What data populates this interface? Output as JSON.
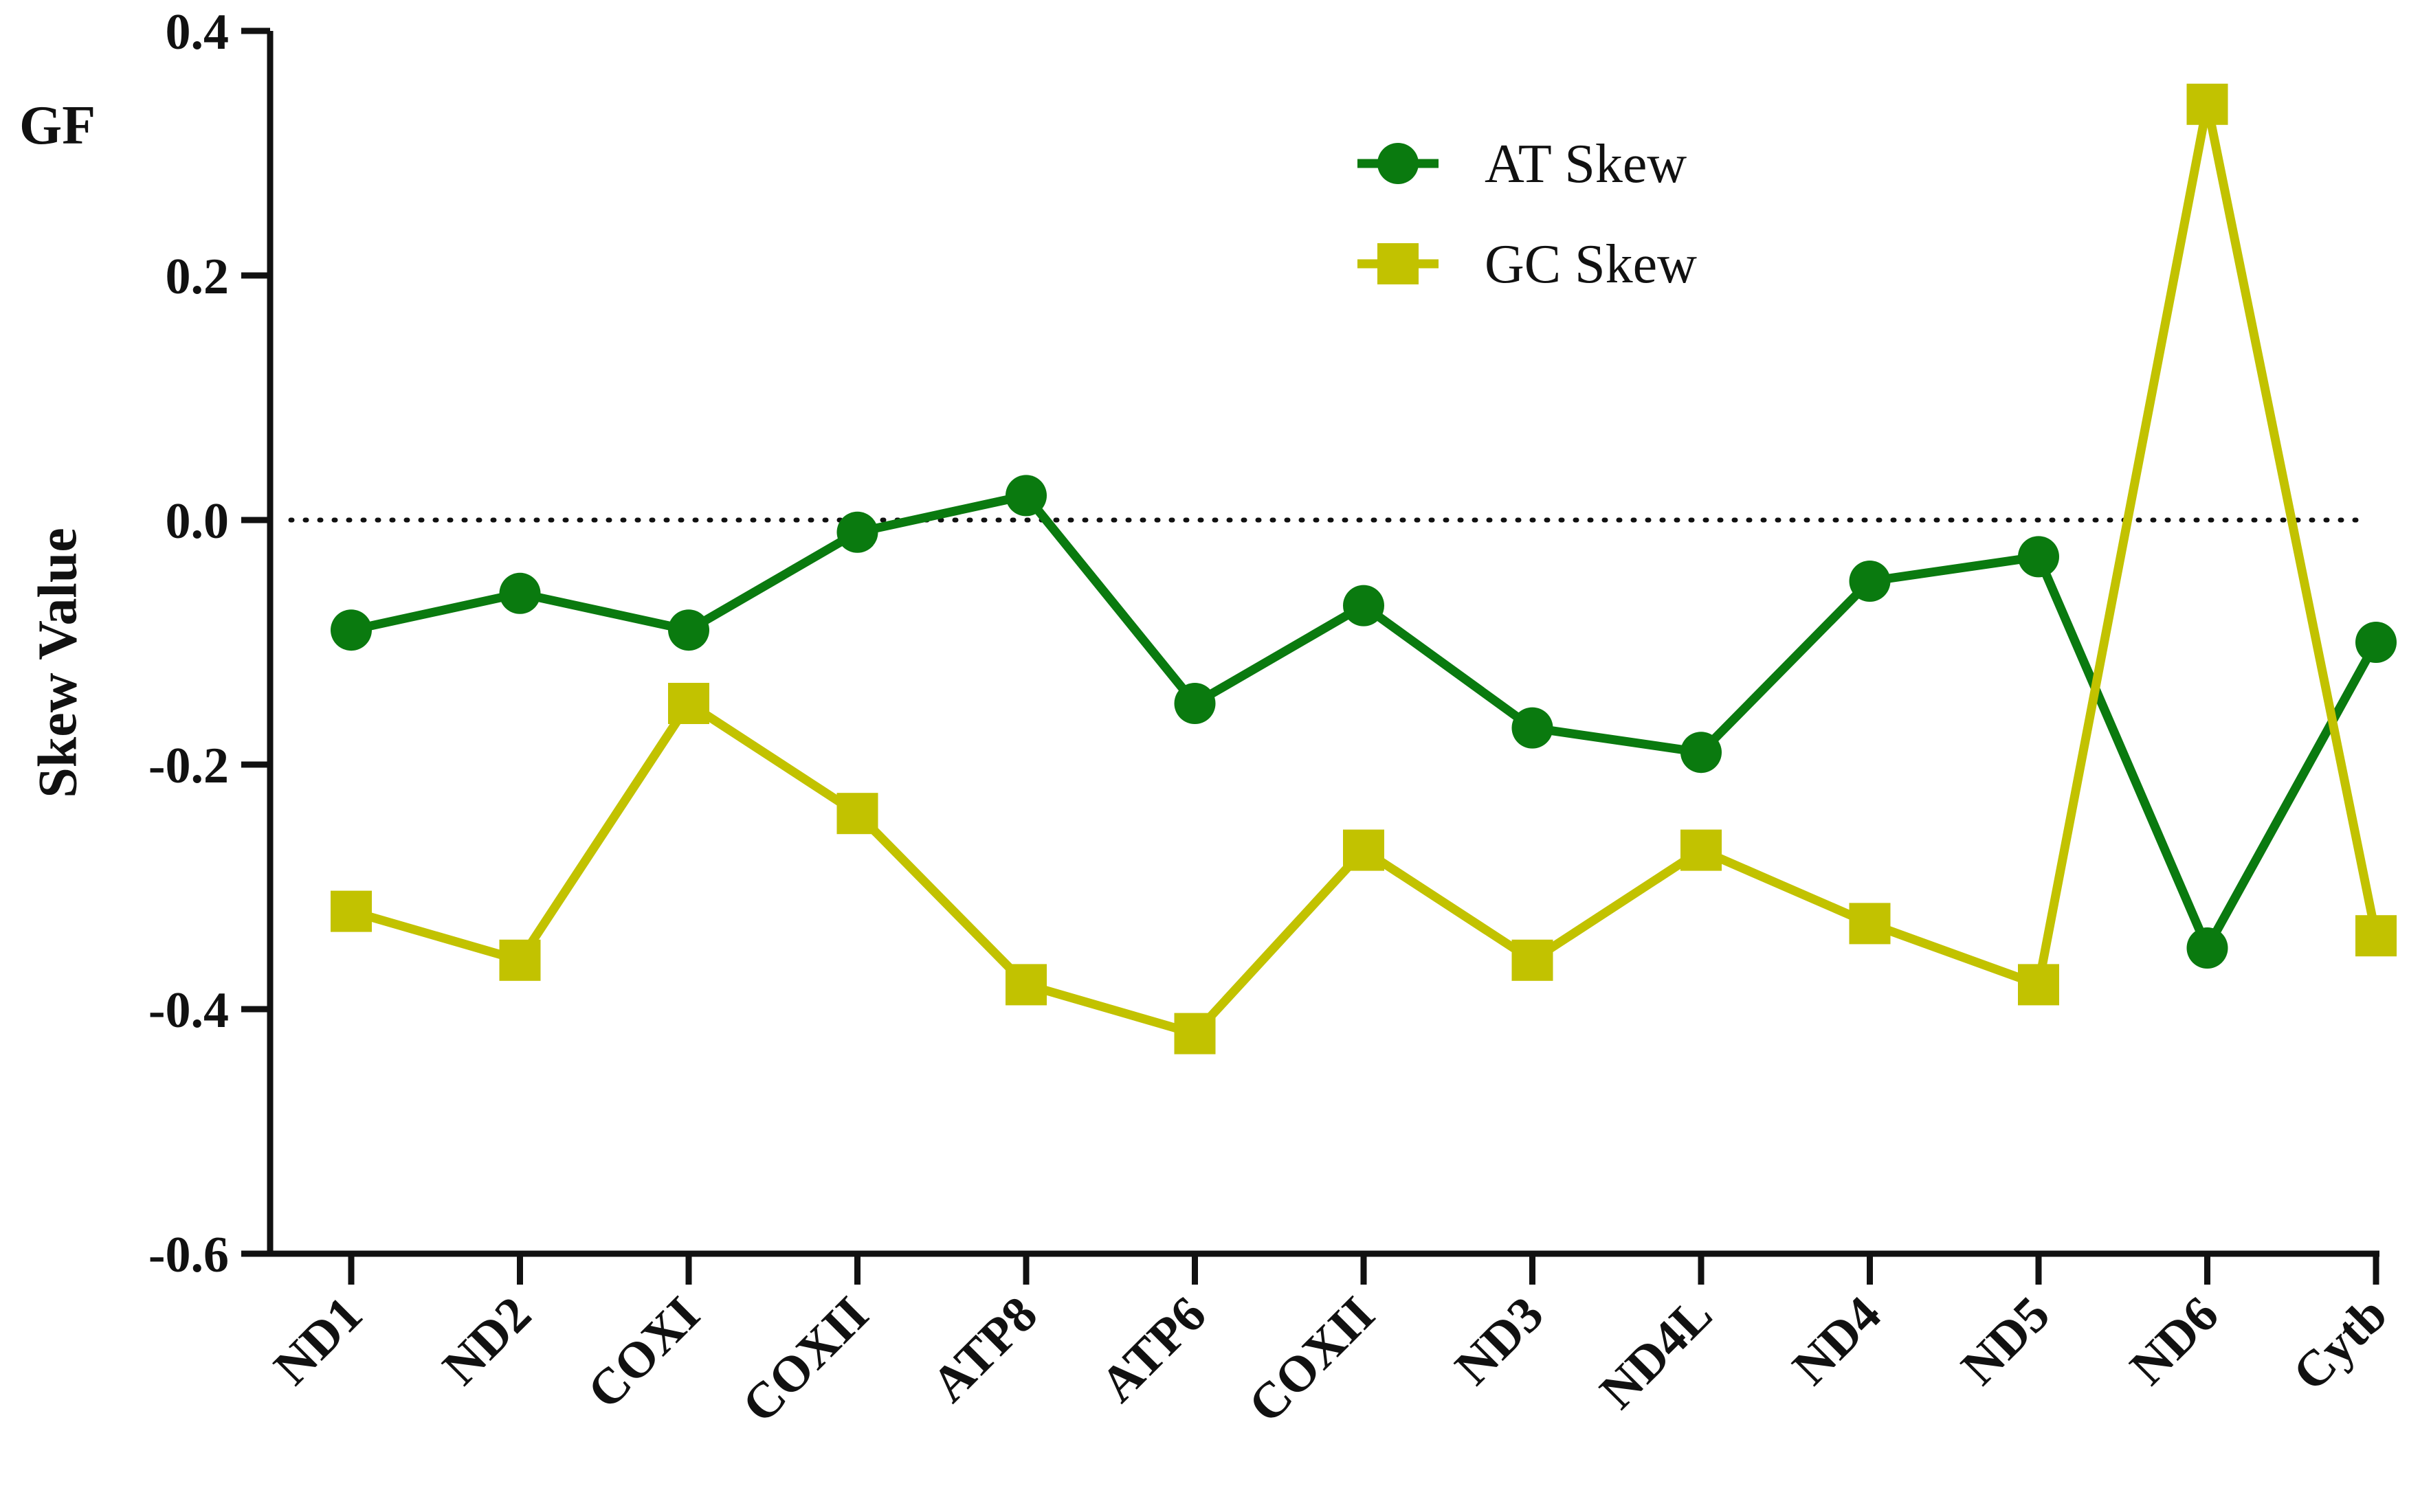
{
  "panel_label": "GF",
  "chart_data": {
    "type": "line",
    "title": "",
    "xlabel": "",
    "ylabel": "Skew Value",
    "ylim": [
      -0.6,
      0.4
    ],
    "yticks": [
      "-0.6",
      "-0.4",
      "-0.2",
      "0.0",
      "0.2",
      "0.4"
    ],
    "categories": [
      "ND1",
      "ND2",
      "COXI",
      "COXII",
      "ATP8",
      "ATP6",
      "COXII",
      "ND3",
      "ND4L",
      "ND4",
      "ND5",
      "ND6",
      "Cytb"
    ],
    "reference_line": 0.0,
    "legend_position": "top-center",
    "series": [
      {
        "name": "AT Skew",
        "marker": "circle",
        "color": "#0a7a0f",
        "values": [
          -0.09,
          -0.06,
          -0.09,
          -0.01,
          0.02,
          -0.15,
          -0.07,
          -0.17,
          -0.19,
          -0.05,
          -0.03,
          -0.35,
          -0.1
        ]
      },
      {
        "name": "GC Skew",
        "marker": "square",
        "color": "#c2c200",
        "values": [
          -0.32,
          -0.36,
          -0.15,
          -0.24,
          -0.38,
          -0.42,
          -0.27,
          -0.36,
          -0.27,
          -0.33,
          -0.38,
          0.34,
          -0.34
        ]
      }
    ]
  }
}
